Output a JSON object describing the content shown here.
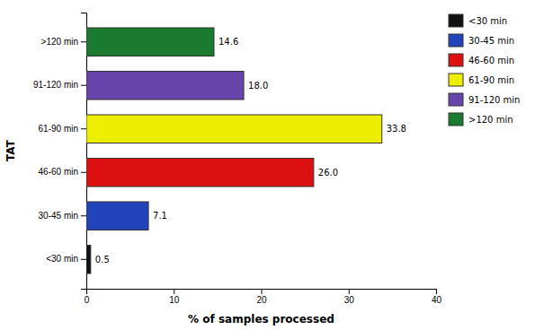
{
  "chart_data": {
    "type": "bar",
    "orientation": "horizontal",
    "categories": [
      "<30 min",
      "30-45 min",
      "46-60 min",
      "61-90 min",
      "91-120 min",
      ">120 min"
    ],
    "values": [
      0.5,
      7.1,
      26.0,
      33.8,
      18.0,
      14.6
    ],
    "value_labels": [
      "0.5",
      "7.1",
      "26.0",
      "33.8",
      "18.0",
      "14.6"
    ],
    "colors": [
      "#111111",
      "#2244bb",
      "#dd1111",
      "#eeee00",
      "#6644aa",
      "#1a7a30"
    ],
    "xlabel": "% of samples processed",
    "ylabel": "TAT",
    "xlim": [
      0,
      40
    ],
    "xticks": [
      0,
      10,
      20,
      30,
      40
    ],
    "data_labels": true,
    "legend": "right",
    "grid": false
  }
}
